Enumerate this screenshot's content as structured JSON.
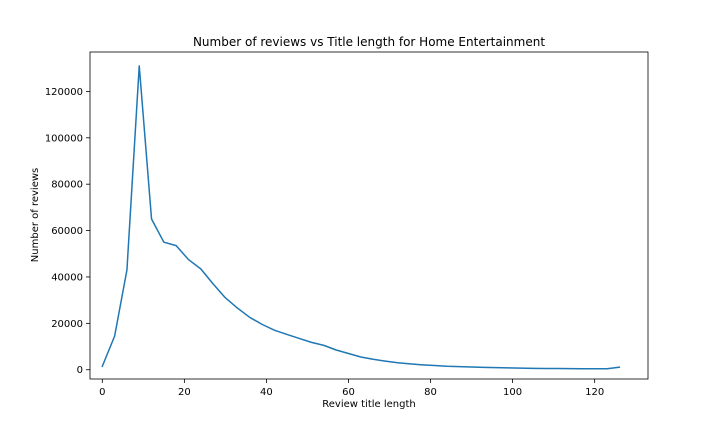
{
  "chart_data": {
    "type": "line",
    "title": "Number of reviews vs Title length for Home Entertainment",
    "xlabel": "Review title length",
    "ylabel": "Number of reviews",
    "xlim": [
      -3,
      133
    ],
    "ylim": [
      -4000,
      137000
    ],
    "xticks": [
      0,
      20,
      40,
      60,
      80,
      100,
      120
    ],
    "yticks": [
      0,
      20000,
      40000,
      60000,
      80000,
      100000,
      120000
    ],
    "grid": false,
    "line_color": "#1f77b4",
    "series": [
      {
        "x": [
          0,
          3,
          6,
          9,
          12,
          15,
          18,
          21,
          24,
          27,
          30,
          33,
          36,
          39,
          42,
          45,
          48,
          51,
          54,
          57,
          60,
          63,
          66,
          69,
          72,
          75,
          78,
          81,
          84,
          87,
          90,
          93,
          96,
          99,
          102,
          105,
          108,
          111,
          114,
          117,
          120,
          123,
          126
        ],
        "y": [
          1500,
          14500,
          43000,
          131000,
          65000,
          55000,
          53500,
          47500,
          43500,
          37000,
          31000,
          26500,
          22500,
          19500,
          17000,
          15200,
          13500,
          11800,
          10500,
          8500,
          7000,
          5500,
          4500,
          3700,
          3000,
          2500,
          2100,
          1800,
          1500,
          1350,
          1150,
          1000,
          900,
          800,
          700,
          600,
          550,
          500,
          450,
          400,
          400,
          400,
          1100
        ]
      }
    ]
  }
}
